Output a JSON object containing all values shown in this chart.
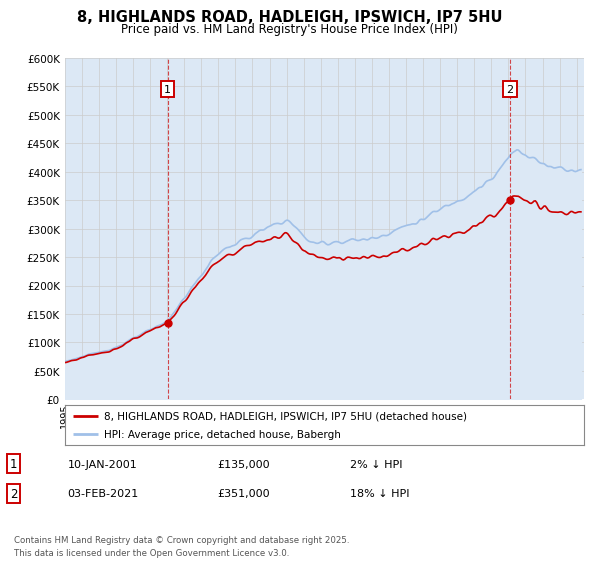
{
  "title_line1": "8, HIGHLANDS ROAD, HADLEIGH, IPSWICH, IP7 5HU",
  "title_line2": "Price paid vs. HM Land Registry's House Price Index (HPI)",
  "hpi_label": "HPI: Average price, detached house, Babergh",
  "price_label": "8, HIGHLANDS ROAD, HADLEIGH, IPSWICH, IP7 5HU (detached house)",
  "hpi_color": "#a0c0e8",
  "hpi_fill_color": "#dce8f5",
  "price_color": "#cc0000",
  "transaction1_date": "10-JAN-2001",
  "transaction1_price": "£135,000",
  "transaction1_note": "2% ↓ HPI",
  "transaction1_year": 2001,
  "transaction1_month": 1,
  "transaction1_value": 135000,
  "transaction2_date": "03-FEB-2021",
  "transaction2_price": "£351,000",
  "transaction2_note": "18% ↓ HPI",
  "transaction2_year": 2021,
  "transaction2_month": 2,
  "transaction2_value": 351000,
  "ylim_max": 600000,
  "footer": "Contains HM Land Registry data © Crown copyright and database right 2025.\nThis data is licensed under the Open Government Licence v3.0.",
  "background_color": "#ffffff",
  "grid_color": "#cccccc"
}
